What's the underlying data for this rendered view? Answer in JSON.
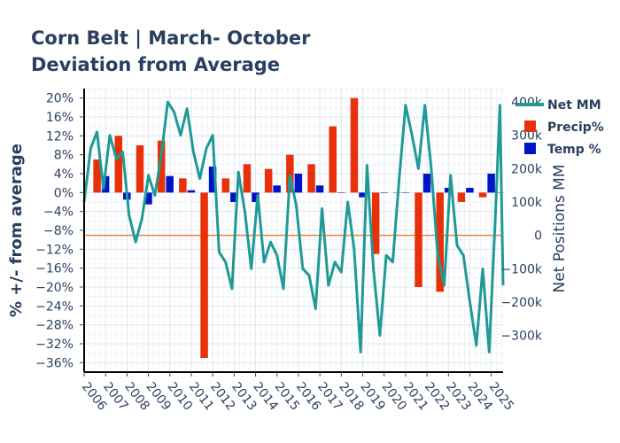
{
  "chart_data": {
    "type": "bar+line",
    "title_line1": "Corn Belt | March- October",
    "title_line2": "Deviation from Average",
    "ylabel_left": "% +/- from average",
    "ylabel_right": "Net Positions MM",
    "ylim_left": [
      -38,
      22
    ],
    "ylim_right": [
      -410,
      440
    ],
    "y_ticks_left": [
      20,
      16,
      12,
      8,
      4,
      0,
      -4,
      -8,
      -12,
      -16,
      -20,
      -24,
      -28,
      -32,
      -36
    ],
    "y_ticks_right": [
      400,
      300,
      200,
      100,
      0,
      -100,
      -200,
      -300
    ],
    "y_tick_labels_left": [
      "20%",
      "16%",
      "12%",
      "8%",
      "4%",
      "0%",
      "−4%",
      "−8%",
      "−12%",
      "−16%",
      "−20%",
      "−24%",
      "−28%",
      "−32%",
      "−36%"
    ],
    "y_tick_labels_right": [
      "400k",
      "300k",
      "200k",
      "100k",
      "0",
      "−100k",
      "−200k",
      "−300k"
    ],
    "x_range": [
      2006.0,
      2025.55
    ],
    "x_tick_labels": [
      "2006",
      "2007",
      "2008",
      "2009",
      "2010",
      "2011",
      "2012",
      "2013",
      "2014",
      "2015",
      "2016",
      "2017",
      "2018",
      "2019",
      "2020",
      "2021",
      "2022",
      "2023",
      "2024",
      "2025"
    ],
    "legend": {
      "placement": "top-right",
      "items": [
        {
          "label": "Net MM",
          "kind": "line",
          "color": "#1f9a96"
        },
        {
          "label": "Precip%",
          "kind": "bar",
          "color": "#e8300b"
        },
        {
          "label": "Temp %",
          "kind": "bar",
          "color": "#0015c8"
        }
      ]
    },
    "reference_line": {
      "axis": "right",
      "value": 0,
      "color": "#e8823f"
    },
    "series": [
      {
        "name": "Precip%",
        "color": "#e8300b",
        "axis": "left",
        "x": [
          2006.8,
          2007.8,
          2008.8,
          2009.8,
          2010.8,
          2011.8,
          2012.8,
          2013.8,
          2014.8,
          2015.8,
          2016.8,
          2017.8,
          2018.8,
          2019.8,
          2020.8,
          2021.8,
          2022.8,
          2023.8,
          2024.8,
          2025.6
        ],
        "values": [
          7,
          12,
          10,
          11,
          3,
          -35,
          3,
          6,
          5,
          8,
          6,
          14,
          20,
          -13,
          0,
          -20,
          -21,
          -2,
          -1,
          0
        ]
      },
      {
        "name": "Temp %",
        "color": "#0015c8",
        "axis": "left",
        "x": [
          2006.8,
          2007.8,
          2008.8,
          2009.8,
          2010.8,
          2011.8,
          2012.8,
          2013.8,
          2014.8,
          2015.8,
          2016.8,
          2017.8,
          2018.8,
          2019.8,
          2020.8,
          2021.8,
          2022.8,
          2023.8,
          2024.8
        ],
        "values": [
          3.5,
          -1.5,
          -2.5,
          3.5,
          0.5,
          5.5,
          -2,
          -2,
          1.5,
          4,
          1.5,
          0,
          -1,
          0,
          0,
          4,
          1,
          1,
          4
        ]
      },
      {
        "name": "Net MM",
        "color": "#1f9a96",
        "axis": "right",
        "x": [
          2006.0,
          2006.3,
          2006.6,
          2006.9,
          2007.2,
          2007.5,
          2007.8,
          2008.1,
          2008.4,
          2008.7,
          2009.0,
          2009.3,
          2009.6,
          2009.9,
          2010.2,
          2010.5,
          2010.8,
          2011.1,
          2011.4,
          2011.7,
          2012.0,
          2012.3,
          2012.6,
          2012.9,
          2013.2,
          2013.5,
          2013.8,
          2014.1,
          2014.4,
          2014.7,
          2015.0,
          2015.3,
          2015.6,
          2015.9,
          2016.2,
          2016.5,
          2016.8,
          2017.1,
          2017.4,
          2017.7,
          2018.0,
          2018.3,
          2018.6,
          2018.9,
          2019.2,
          2019.5,
          2019.8,
          2020.1,
          2020.4,
          2020.7,
          2021.0,
          2021.3,
          2021.6,
          2021.9,
          2022.2,
          2022.5,
          2022.8,
          2023.1,
          2023.4,
          2023.7,
          2024.0,
          2024.3,
          2024.6,
          2024.9,
          2025.2,
          2025.4,
          2025.55
        ],
        "values": [
          100,
          260,
          310,
          140,
          300,
          230,
          250,
          60,
          -20,
          50,
          180,
          120,
          240,
          400,
          370,
          300,
          380,
          250,
          170,
          260,
          300,
          -50,
          -80,
          -160,
          190,
          70,
          -100,
          120,
          -80,
          -20,
          -60,
          -160,
          180,
          90,
          -100,
          -120,
          -220,
          80,
          -150,
          -80,
          -110,
          100,
          -40,
          -350,
          210,
          -100,
          -300,
          -60,
          -80,
          170,
          390,
          300,
          200,
          390,
          200,
          -60,
          -150,
          180,
          -30,
          -60,
          -200,
          -330,
          -100,
          -350,
          70,
          390,
          -150
        ]
      }
    ]
  }
}
